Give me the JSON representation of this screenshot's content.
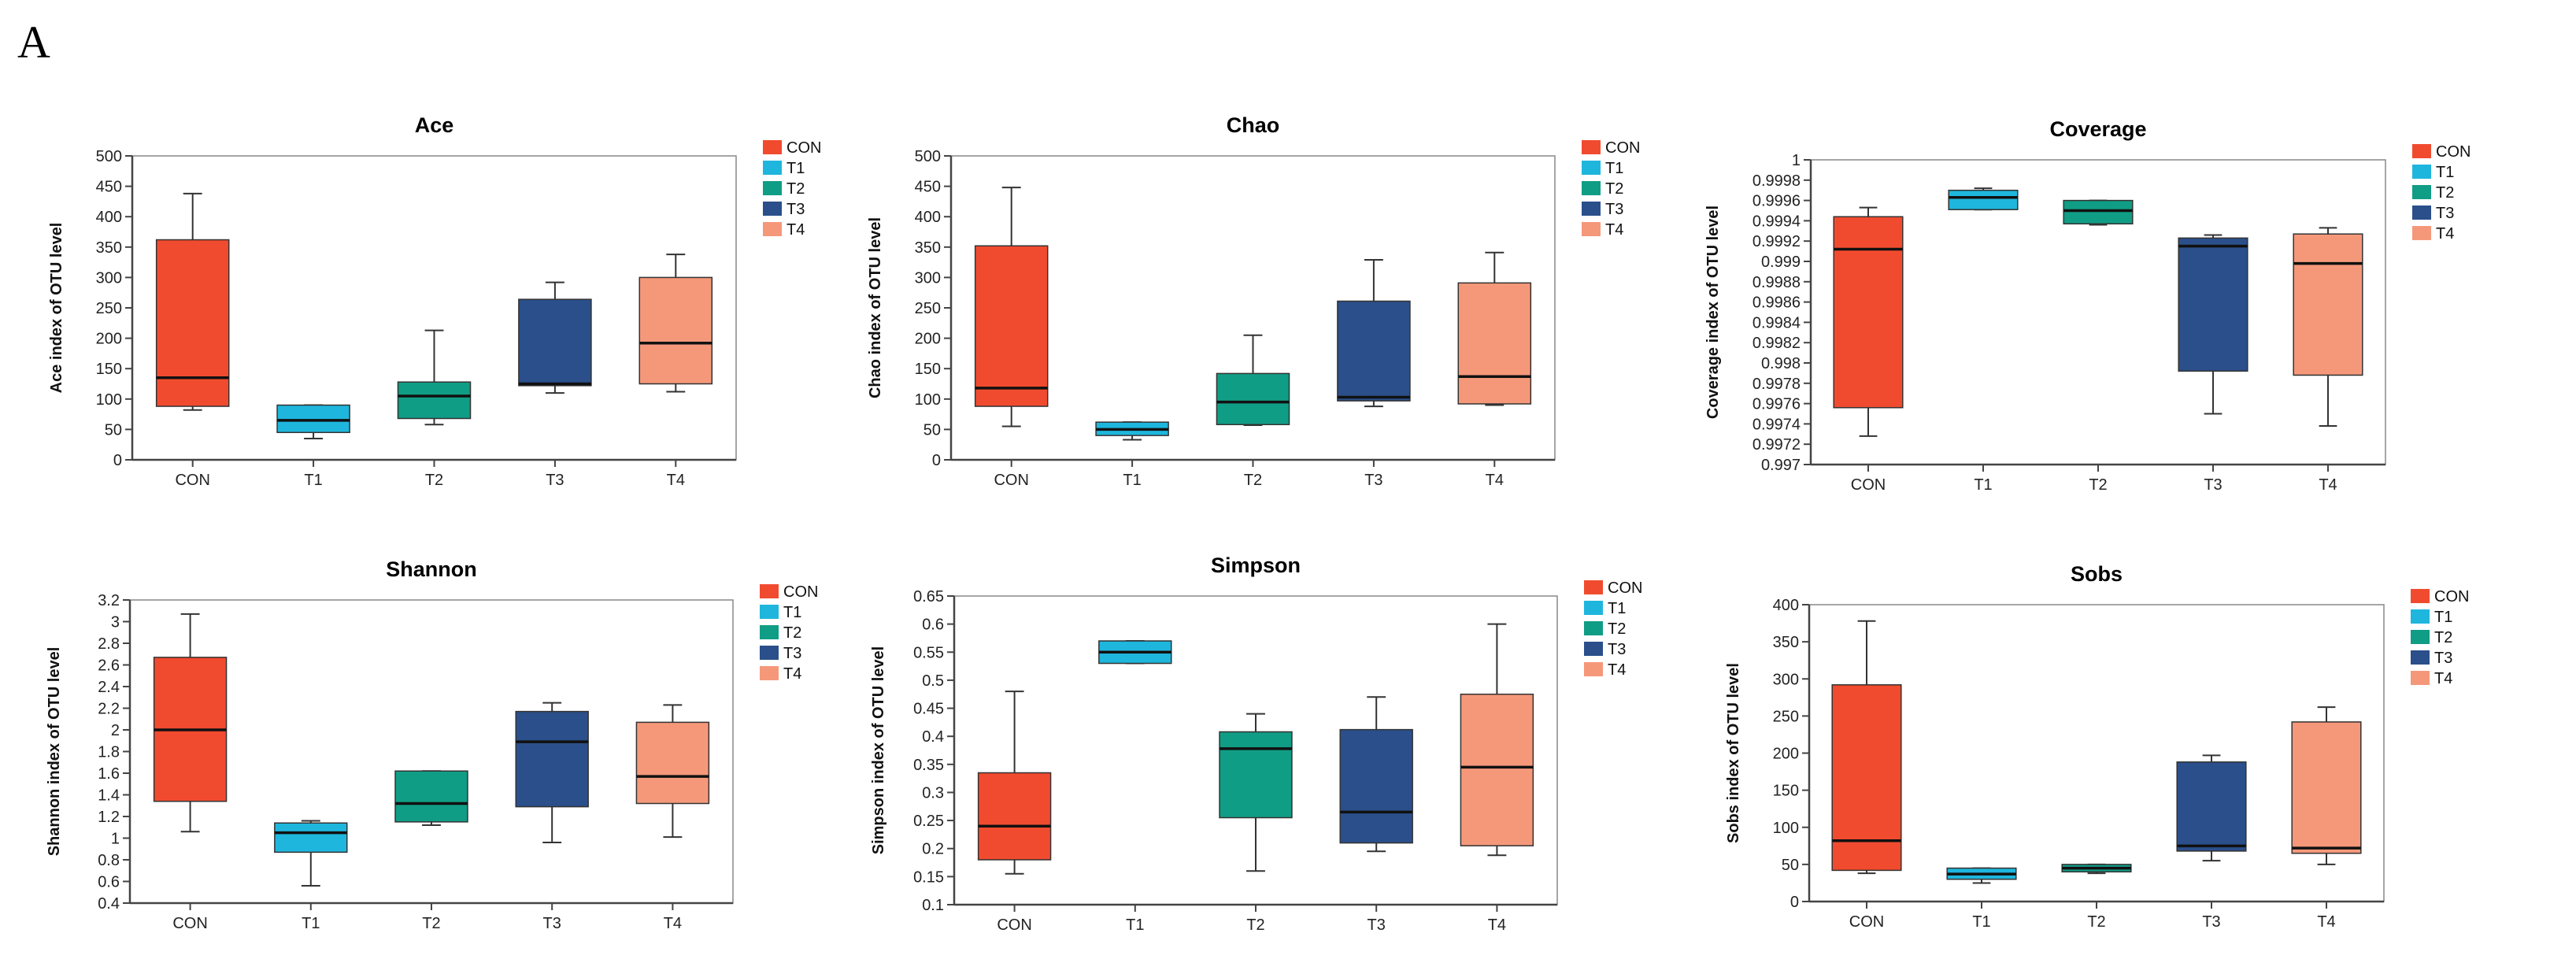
{
  "panel_label": "A",
  "legend_labels": [
    "CON",
    "T1",
    "T2",
    "T3",
    "T4"
  ],
  "colors": {
    "CON": "#f14b2f",
    "T1": "#1eb6dd",
    "T2": "#109d85",
    "T3": "#2a4f8a",
    "T4": "#f5987a",
    "axis": "#444444",
    "frame": "#888888",
    "median": "#111111"
  },
  "chart_data": [
    {
      "type": "box",
      "title": "Ace",
      "ylabel": "Ace index of OTU level",
      "categories": [
        "CON",
        "T1",
        "T2",
        "T3",
        "T4"
      ],
      "ylim": [
        0,
        500
      ],
      "yticks": [
        0,
        50,
        100,
        150,
        200,
        250,
        300,
        350,
        400,
        450,
        500
      ],
      "ytick_labels": [
        "0",
        "50",
        "100",
        "150",
        "200",
        "250",
        "300",
        "350",
        "400",
        "450",
        "500"
      ],
      "boxes": [
        {
          "min": 82,
          "q1": 88,
          "median": 135,
          "q3": 362,
          "max": 438
        },
        {
          "min": 35,
          "q1": 45,
          "median": 65,
          "q3": 90,
          "max": 90
        },
        {
          "min": 58,
          "q1": 68,
          "median": 105,
          "q3": 128,
          "max": 213
        },
        {
          "min": 110,
          "q1": 122,
          "median": 125,
          "q3": 264,
          "max": 292
        },
        {
          "min": 112,
          "q1": 125,
          "median": 192,
          "q3": 300,
          "max": 338
        }
      ]
    },
    {
      "type": "box",
      "title": "Chao",
      "ylabel": "Chao index of OTU level",
      "categories": [
        "CON",
        "T1",
        "T2",
        "T3",
        "T4"
      ],
      "ylim": [
        0,
        500
      ],
      "yticks": [
        0,
        50,
        100,
        150,
        200,
        250,
        300,
        350,
        400,
        450,
        500
      ],
      "ytick_labels": [
        "0",
        "50",
        "100",
        "150",
        "200",
        "250",
        "300",
        "350",
        "400",
        "450",
        "500"
      ],
      "boxes": [
        {
          "min": 55,
          "q1": 88,
          "median": 118,
          "q3": 352,
          "max": 448
        },
        {
          "min": 33,
          "q1": 40,
          "median": 50,
          "q3": 62,
          "max": 62
        },
        {
          "min": 57,
          "q1": 58,
          "median": 95,
          "q3": 142,
          "max": 205
        },
        {
          "min": 88,
          "q1": 97,
          "median": 103,
          "q3": 261,
          "max": 329
        },
        {
          "min": 90,
          "q1": 92,
          "median": 137,
          "q3": 291,
          "max": 341
        }
      ]
    },
    {
      "type": "box",
      "title": "Coverage",
      "ylabel": "Coverage index of OTU level",
      "categories": [
        "CON",
        "T1",
        "T2",
        "T3",
        "T4"
      ],
      "ylim": [
        0.997,
        1.0
      ],
      "yticks": [
        0.997,
        0.9972,
        0.9974,
        0.9976,
        0.9978,
        0.998,
        0.9982,
        0.9984,
        0.9986,
        0.9988,
        0.999,
        0.9992,
        0.9994,
        0.9996,
        0.9998,
        1.0
      ],
      "ytick_labels": [
        "0.997",
        "0.9972",
        "0.9974",
        "0.9976",
        "0.9978",
        "0.998",
        "0.9982",
        "0.9984",
        "0.9986",
        "0.9988",
        "0.999",
        "0.9992",
        "0.9994",
        "0.9996",
        "0.9998",
        "1"
      ],
      "boxes": [
        {
          "min": 0.99728,
          "q1": 0.99756,
          "median": 0.99912,
          "q3": 0.99944,
          "max": 0.99953
        },
        {
          "min": 0.99951,
          "q1": 0.99951,
          "median": 0.99963,
          "q3": 0.9997,
          "max": 0.99972
        },
        {
          "min": 0.99936,
          "q1": 0.99937,
          "median": 0.9995,
          "q3": 0.9996,
          "max": 0.9996
        },
        {
          "min": 0.9975,
          "q1": 0.99792,
          "median": 0.99915,
          "q3": 0.99923,
          "max": 0.99926
        },
        {
          "min": 0.99738,
          "q1": 0.99788,
          "median": 0.99898,
          "q3": 0.99927,
          "max": 0.99933
        }
      ]
    },
    {
      "type": "box",
      "title": "Shannon",
      "ylabel": "Shannon index of OTU level",
      "categories": [
        "CON",
        "T1",
        "T2",
        "T3",
        "T4"
      ],
      "ylim": [
        0.4,
        3.2
      ],
      "yticks": [
        0.4,
        0.6,
        0.8,
        1.0,
        1.2,
        1.4,
        1.6,
        1.8,
        2.0,
        2.2,
        2.4,
        2.6,
        2.8,
        3.0,
        3.2
      ],
      "ytick_labels": [
        "0.4",
        "0.6",
        "0.8",
        "1",
        "1.2",
        "1.4",
        "1.6",
        "1.8",
        "2",
        "2.2",
        "2.4",
        "2.6",
        "2.8",
        "3",
        "3.2"
      ],
      "boxes": [
        {
          "min": 1.06,
          "q1": 1.34,
          "median": 2.0,
          "q3": 2.67,
          "max": 3.07
        },
        {
          "min": 0.56,
          "q1": 0.87,
          "median": 1.05,
          "q3": 1.14,
          "max": 1.16
        },
        {
          "min": 1.12,
          "q1": 1.15,
          "median": 1.32,
          "q3": 1.62,
          "max": 1.62
        },
        {
          "min": 0.96,
          "q1": 1.29,
          "median": 1.89,
          "q3": 2.17,
          "max": 2.25
        },
        {
          "min": 1.01,
          "q1": 1.32,
          "median": 1.57,
          "q3": 2.07,
          "max": 2.23
        }
      ]
    },
    {
      "type": "box",
      "title": "Simpson",
      "ylabel": "Simpson index of OTU level",
      "categories": [
        "CON",
        "T1",
        "T2",
        "T3",
        "T4"
      ],
      "ylim": [
        0.1,
        0.65
      ],
      "yticks": [
        0.1,
        0.15,
        0.2,
        0.25,
        0.3,
        0.35,
        0.4,
        0.45,
        0.5,
        0.55,
        0.6,
        0.65
      ],
      "ytick_labels": [
        "0.1",
        "0.15",
        "0.2",
        "0.25",
        "0.3",
        "0.35",
        "0.4",
        "0.45",
        "0.5",
        "0.55",
        "0.6",
        "0.65"
      ],
      "boxes": [
        {
          "min": 0.155,
          "q1": 0.18,
          "median": 0.24,
          "q3": 0.335,
          "max": 0.48
        },
        {
          "min": 0.53,
          "q1": 0.53,
          "median": 0.55,
          "q3": 0.57,
          "max": 0.57
        },
        {
          "min": 0.16,
          "q1": 0.255,
          "median": 0.378,
          "q3": 0.408,
          "max": 0.44
        },
        {
          "min": 0.195,
          "q1": 0.21,
          "median": 0.265,
          "q3": 0.412,
          "max": 0.47
        },
        {
          "min": 0.188,
          "q1": 0.205,
          "median": 0.345,
          "q3": 0.475,
          "max": 0.6
        }
      ]
    },
    {
      "type": "box",
      "title": "Sobs",
      "ylabel": "Sobs index of OTU level",
      "categories": [
        "CON",
        "T1",
        "T2",
        "T3",
        "T4"
      ],
      "ylim": [
        0,
        400
      ],
      "yticks": [
        0,
        50,
        100,
        150,
        200,
        250,
        300,
        350,
        400
      ],
      "ytick_labels": [
        "0",
        "50",
        "100",
        "150",
        "200",
        "250",
        "300",
        "350",
        "400"
      ],
      "boxes": [
        {
          "min": 38,
          "q1": 42,
          "median": 82,
          "q3": 292,
          "max": 378
        },
        {
          "min": 25,
          "q1": 30,
          "median": 37,
          "q3": 45,
          "max": 45
        },
        {
          "min": 38,
          "q1": 40,
          "median": 45,
          "q3": 50,
          "max": 50
        },
        {
          "min": 55,
          "q1": 68,
          "median": 75,
          "q3": 188,
          "max": 197
        },
        {
          "min": 50,
          "q1": 65,
          "median": 72,
          "q3": 242,
          "max": 262
        }
      ]
    }
  ]
}
